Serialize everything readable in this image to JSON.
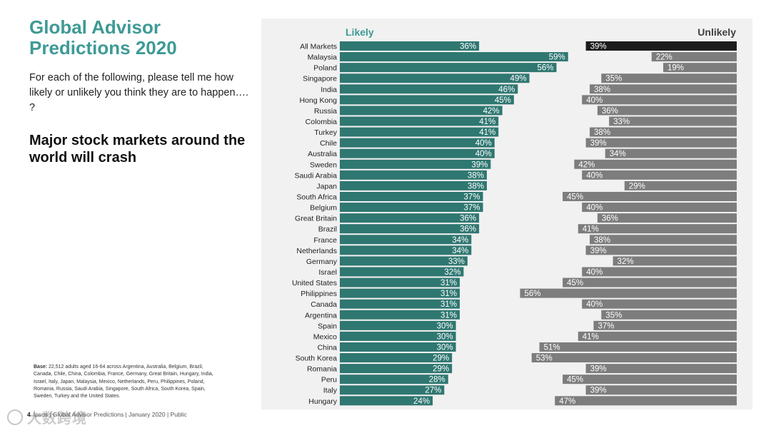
{
  "slide": {
    "title_line1": "Global Advisor",
    "title_line2": "Predictions 2020",
    "question": "For each of the following, please tell me how likely or unlikely you think they are to happen…. ?",
    "statement": "Major stock markets around the world will crash",
    "base_label": "Base:",
    "base_text": " 22,512 adults aged 16-64 across Argentina, Australia, Belgium, Brazil, Canada, Chile, China, Colombia, France, Germany, Great Britain, Hungary, India, Israel, Italy, Japan, Malaysia, Mexico, Netherlands, Peru, Philippines, Poland, Romania, Russia, Saudi Arabia, Singapore, South Africa, South Korea, Spain, Sweden, Turkey and the United States.",
    "page_number": "4",
    "footer": "Ipsos | Global Advisor Predictions | January 2020 | Public",
    "watermark": "大数跨境"
  },
  "colors": {
    "title": "#3e9a95",
    "likely_bar": "#2f7771",
    "unlikely_bar": "#7d7d7d",
    "all_markets_unlikely": "#1c1c1c",
    "panel_bg": "#f1f1f1"
  },
  "chart_data": {
    "type": "bar",
    "orientation": "diverging-horizontal",
    "series_headers": {
      "likely": "Likely",
      "unlikely": "Unlikely"
    },
    "value_suffix": "%",
    "categories": [
      "All Markets",
      "Malaysia",
      "Poland",
      "Singapore",
      "India",
      "Hong Kong",
      "Russia",
      "Colombia",
      "Turkey",
      "Chile",
      "Australia",
      "Sweden",
      "Saudi Arabia",
      "Japan",
      "South Africa",
      "Belgium",
      "Great Britain",
      "Brazil",
      "France",
      "Netherlands",
      "Germany",
      "Israel",
      "United States",
      "Philippines",
      "Canada",
      "Argentina",
      "Spain",
      "Mexico",
      "China",
      "South Korea",
      "Romania",
      "Peru",
      "Italy",
      "Hungary"
    ],
    "series": [
      {
        "name": "Likely",
        "values": [
          36,
          59,
          56,
          49,
          46,
          45,
          42,
          41,
          41,
          40,
          40,
          39,
          38,
          38,
          37,
          37,
          36,
          36,
          34,
          34,
          33,
          32,
          31,
          31,
          31,
          31,
          30,
          30,
          30,
          29,
          29,
          28,
          27,
          24
        ]
      },
      {
        "name": "Unlikely",
        "values": [
          39,
          22,
          19,
          35,
          38,
          40,
          36,
          33,
          38,
          39,
          34,
          42,
          40,
          29,
          45,
          40,
          36,
          41,
          38,
          39,
          32,
          40,
          45,
          56,
          40,
          35,
          37,
          41,
          51,
          53,
          39,
          45,
          39,
          47
        ]
      }
    ],
    "xlim_likely": [
      0,
      100
    ],
    "xlim_unlikely": [
      0,
      100
    ]
  }
}
